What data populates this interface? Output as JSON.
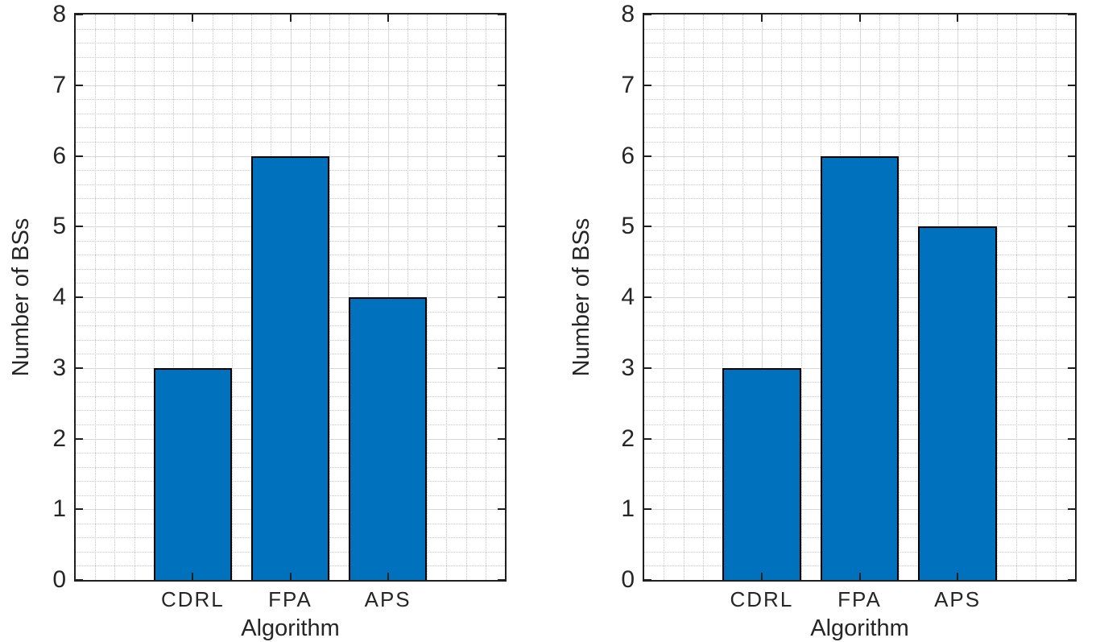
{
  "figure": {
    "background_color": "#ffffff",
    "bar_color": "#0072BD",
    "bar_edge_color": "#000000",
    "axis_color": "#1f1f1f",
    "major_grid_color": "#d7d7d7",
    "minor_grid_color": "#c7c7c7",
    "text_color": "#262626"
  },
  "chart_data": [
    {
      "type": "bar",
      "title": "",
      "categories": [
        "CDRL",
        "FPA",
        "APS"
      ],
      "values": [
        3,
        6,
        4
      ],
      "xlabel": "Algorithm",
      "ylabel": "Number of BSs",
      "ylim": [
        0,
        8
      ],
      "yticks": [
        "0",
        "1",
        "2",
        "3",
        "4",
        "5",
        "6",
        "7",
        "8"
      ],
      "grid": "on",
      "minor_grid": "on",
      "legend": "none",
      "bar_width_fraction": 0.8
    },
    {
      "type": "bar",
      "title": "",
      "categories": [
        "CDRL",
        "FPA",
        "APS"
      ],
      "values": [
        3,
        6,
        5
      ],
      "xlabel": "Algorithm",
      "ylabel": "Number of BSs",
      "ylim": [
        0,
        8
      ],
      "yticks": [
        "0",
        "1",
        "2",
        "3",
        "4",
        "5",
        "6",
        "7",
        "8"
      ],
      "grid": "on",
      "minor_grid": "on",
      "legend": "none",
      "bar_width_fraction": 0.8
    }
  ]
}
